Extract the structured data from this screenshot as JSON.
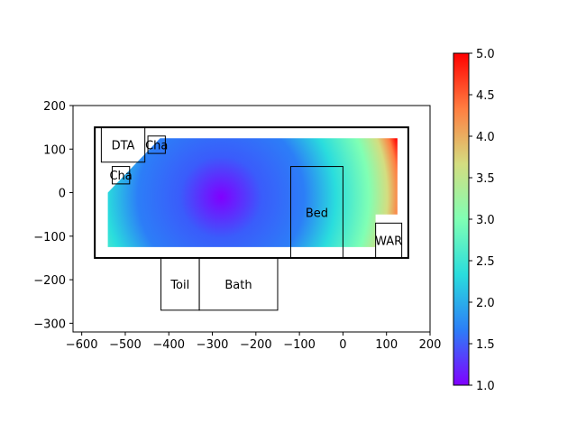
{
  "chart_data": [
    {
      "type": "heatmap",
      "title": "",
      "xlabel": "",
      "ylabel": "",
      "xlim": [
        -620,
        200
      ],
      "ylim": [
        -320,
        200
      ],
      "xticks": [
        -600,
        -500,
        -400,
        -300,
        -200,
        -100,
        0,
        100,
        200
      ],
      "yticks": [
        -300,
        -200,
        -100,
        0,
        100,
        200
      ],
      "xtick_labels": [
        "−600",
        "−500",
        "−400",
        "−300",
        "−200",
        "−100",
        "0",
        "100",
        "200"
      ],
      "ytick_labels": [
        "−300",
        "−200",
        "−100",
        "0",
        "100",
        "200"
      ],
      "colormap": "rainbow",
      "colormap_colors": [
        "#8000ff",
        "#2c7ef7",
        "#2adddd",
        "#80ffb4",
        "#d4dd80",
        "#ff7e41",
        "#ff0000"
      ],
      "value_range": [
        1.0,
        5.0
      ],
      "heat_region": [
        [
          -540,
          -125
        ],
        [
          -540,
          0
        ],
        [
          -420,
          125
        ],
        [
          125,
          125
        ],
        [
          125,
          -50
        ],
        [
          75,
          -50
        ],
        [
          75,
          -125
        ]
      ],
      "minimum": {
        "x": -280,
        "y": -10,
        "value": 1.0
      },
      "outline": {
        "x": [
          -570,
          150
        ],
        "y": [
          -150,
          150
        ],
        "color": "#000000"
      },
      "rooms": [
        {
          "label": "DTA",
          "x": [
            -555,
            -455
          ],
          "y": [
            70,
            150
          ]
        },
        {
          "label": "Cha",
          "x": [
            -448,
            -408
          ],
          "y": [
            90,
            130
          ]
        },
        {
          "label": "Cha",
          "x": [
            -530,
            -490
          ],
          "y": [
            20,
            60
          ]
        },
        {
          "label": "Bed",
          "x": [
            -120,
            0
          ],
          "y": [
            -150,
            60
          ]
        },
        {
          "label": "WAR",
          "x": [
            75,
            135
          ],
          "y": [
            -150,
            -70
          ]
        },
        {
          "label": "Toil",
          "x": [
            -418,
            -330
          ],
          "y": [
            -270,
            -150
          ]
        },
        {
          "label": "Bath",
          "x": [
            -330,
            -150
          ],
          "y": [
            -270,
            -150
          ]
        }
      ]
    },
    {
      "type": "colorbar",
      "range": [
        1.0,
        5.0
      ],
      "ticks": [
        1.0,
        1.5,
        2.0,
        2.5,
        3.0,
        3.5,
        4.0,
        4.5,
        5.0
      ],
      "tick_labels": [
        "1.0",
        "1.5",
        "2.0",
        "2.5",
        "3.0",
        "3.5",
        "4.0",
        "4.5",
        "5.0"
      ]
    }
  ]
}
